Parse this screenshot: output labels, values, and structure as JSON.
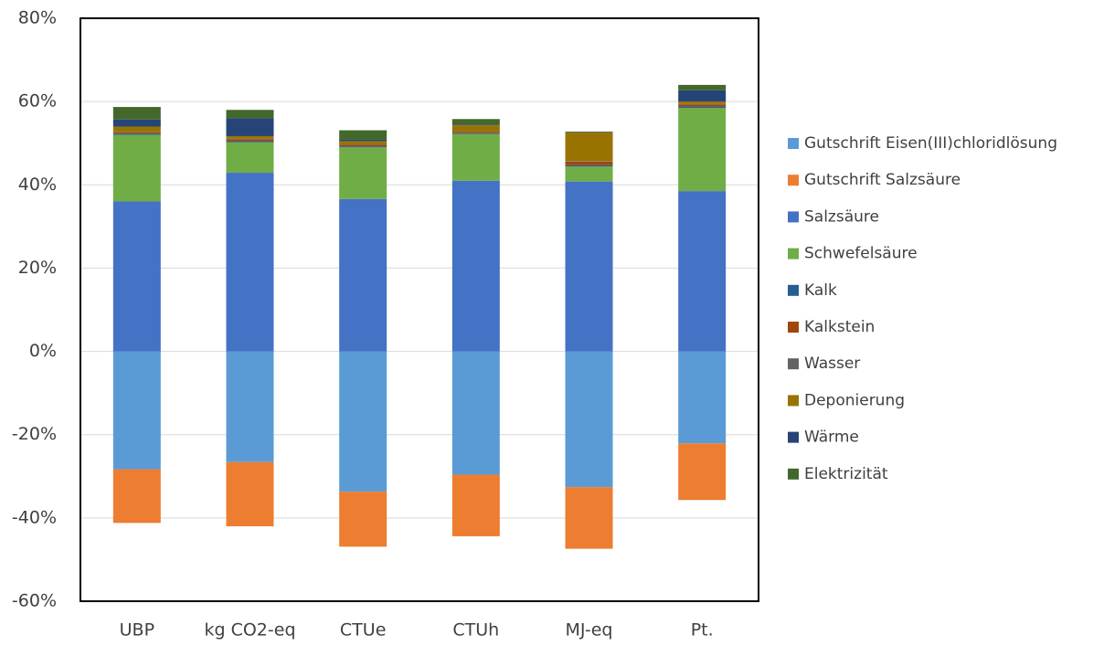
{
  "chart_data": {
    "type": "stacked_bar",
    "categories": [
      "UBP",
      "kg CO2-eq",
      "CTUe",
      "CTUh",
      "MJ-eq",
      "Pt."
    ],
    "series": [
      {
        "name": "Gutschrift Eisen(III)chloridlösung",
        "color": "#5b9bd5",
        "values": [
          -28.3,
          -26.6,
          -33.7,
          -29.6,
          -32.6,
          -22.1
        ]
      },
      {
        "name": "Gutschrift Salzsäure",
        "color": "#ed7d31",
        "values": [
          -12.9,
          -15.4,
          -13.2,
          -14.8,
          -14.8,
          -13.6
        ]
      },
      {
        "name": "Salzsäure",
        "color": "#4472c4",
        "values": [
          36.0,
          42.9,
          36.6,
          41.0,
          40.8,
          38.5
        ]
      },
      {
        "name": "Schwefelsäure",
        "color": "#70ad47",
        "values": [
          16.0,
          7.3,
          12.4,
          11.2,
          3.6,
          20.0
        ]
      },
      {
        "name": "Kalk",
        "color": "#255e91",
        "values": [
          0.3,
          0.3,
          0.2,
          0.2,
          0.3,
          0.3
        ]
      },
      {
        "name": "Kalkstein",
        "color": "#9e480e",
        "values": [
          0.3,
          0.5,
          0.4,
          0.3,
          0.9,
          0.5
        ]
      },
      {
        "name": "Wasser",
        "color": "#636363",
        "values": [
          0.1,
          0.1,
          0.1,
          0.1,
          0.1,
          0.1
        ]
      },
      {
        "name": "Deponierung",
        "color": "#997300",
        "values": [
          1.3,
          0.6,
          0.8,
          1.5,
          6.9,
          0.6
        ]
      },
      {
        "name": "Wärme",
        "color": "#264478",
        "values": [
          1.7,
          4.3,
          0.4,
          0.2,
          0.1,
          2.7
        ]
      },
      {
        "name": "Elektrizität",
        "color": "#43682b",
        "values": [
          3.0,
          2.0,
          2.2,
          1.3,
          0.1,
          1.3
        ]
      }
    ],
    "ylim": [
      -60,
      80
    ],
    "yticks": [
      {
        "value": -60,
        "label": "-60%"
      },
      {
        "value": -40,
        "label": "-40%"
      },
      {
        "value": -20,
        "label": "-20%"
      },
      {
        "value": 0,
        "label": "0%"
      },
      {
        "value": 20,
        "label": "20%"
      },
      {
        "value": 40,
        "label": "40%"
      },
      {
        "value": 60,
        "label": "60%"
      },
      {
        "value": 80,
        "label": "80%"
      }
    ],
    "grid": true,
    "legend": "right"
  }
}
